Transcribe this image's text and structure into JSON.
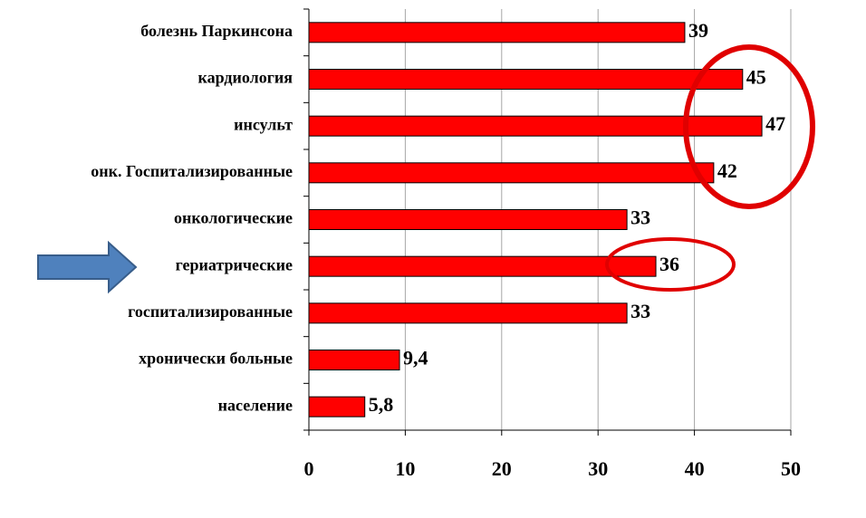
{
  "chart_data": {
    "type": "bar",
    "orientation": "horizontal",
    "categories": [
      "болезнь Паркинсона",
      "кардиология",
      "инсульт",
      "онк. Госпитализированные",
      "онкологические",
      "гериатрические",
      "госпитализированные",
      "хронически больные",
      "население"
    ],
    "values": [
      39,
      45,
      47,
      42,
      33,
      36,
      33,
      9.4,
      5.8
    ],
    "value_labels": [
      "39",
      "45",
      "47",
      "42",
      "33",
      "36",
      "33",
      "9,4",
      "5,8"
    ],
    "color": "#ff0000",
    "xlim": [
      0,
      50
    ],
    "xticks": [
      0,
      10,
      20,
      30,
      40,
      50
    ],
    "grid": true
  }
}
